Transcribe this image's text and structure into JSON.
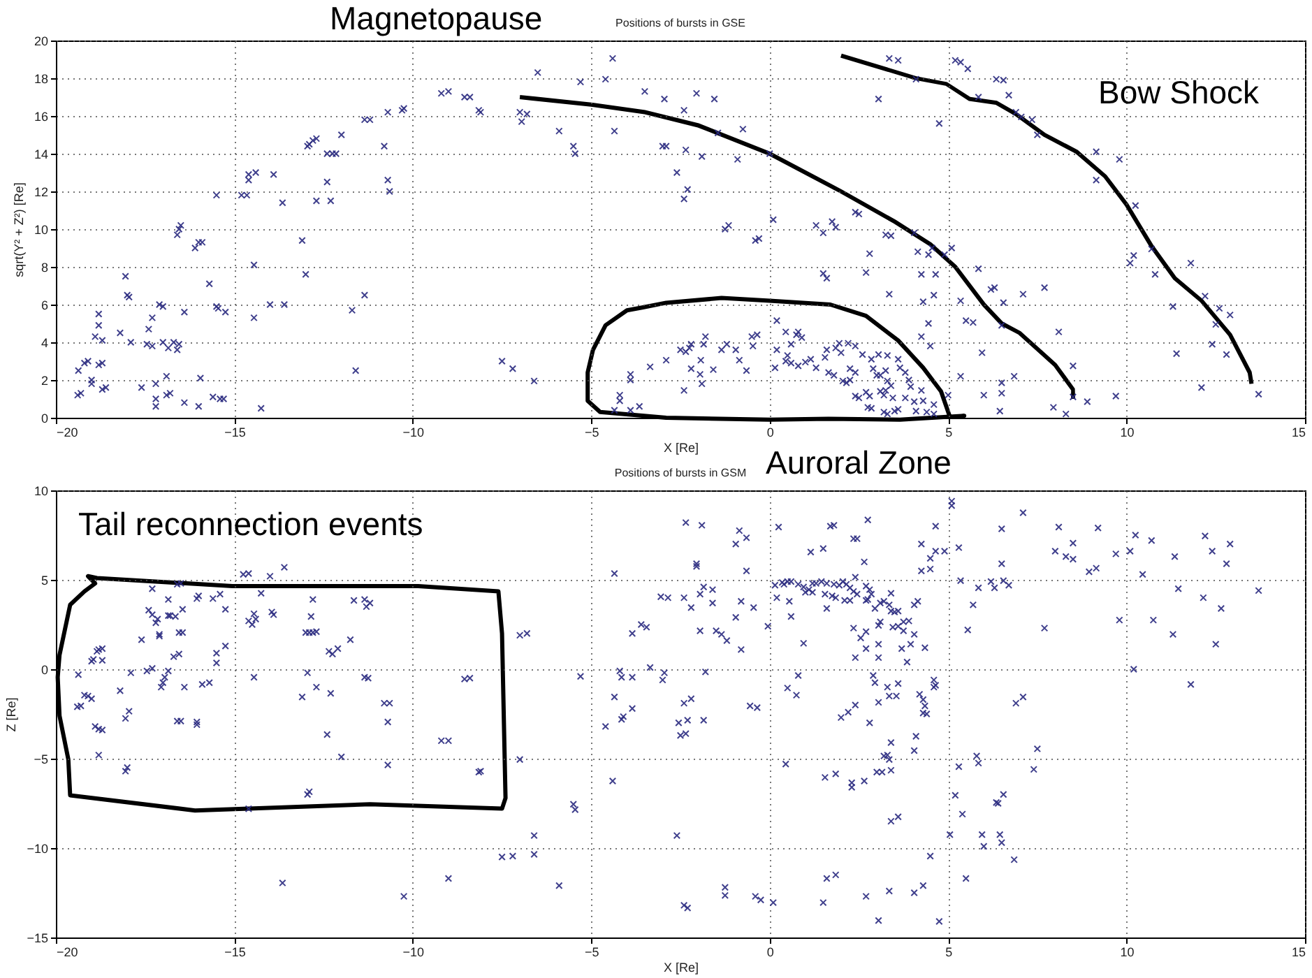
{
  "chart_data": [
    {
      "type": "scatter",
      "title": "Positions of bursts in GSE",
      "xlabel": "X [Re]",
      "ylabel": "sqrt(Y² + Z²) [Re]",
      "annotations": [
        "Magnetopause",
        "Bow Shock",
        "Auroral Zone"
      ],
      "xlim": [
        -20,
        15
      ],
      "xticks": [
        -20,
        -15,
        -10,
        -5,
        0,
        5,
        10,
        15
      ],
      "ylim": [
        0,
        20
      ],
      "yticks": [
        0,
        2,
        4,
        6,
        8,
        10,
        12,
        14,
        16,
        18,
        20
      ],
      "grid": true,
      "marker": "cross",
      "legend": false,
      "series": [
        {
          "color": "#2b2b80",
          "x": [
            -19.37,
            -19.39,
            -19.3,
            -19.2,
            -19.1,
            -19.0,
            -19.0,
            -18.9,
            -18.8,
            -18.8,
            -18.7,
            -18.8,
            -18.7,
            -18.7,
            -18.6,
            -18.2,
            -18.05,
            -18.0,
            -17.95,
            -17.9,
            -17.6,
            -17.4,
            -17.3,
            -17.3,
            -17.45,
            -17.2,
            -17.2,
            -17.2,
            -17.1,
            -17.0,
            -17.0,
            -16.9,
            -16.9,
            -16.85,
            -16.7,
            -16.8,
            -16.6,
            -16.55,
            -16.6,
            -16.55,
            -16.5,
            -16.4,
            -16.4,
            -16.1,
            -16.0,
            -15.9,
            -16.0,
            -15.95,
            -15.7,
            -15.6,
            -15.5,
            -15.5,
            -15.45,
            -15.4,
            -15.3,
            -15.25,
            -14.8,
            -14.65,
            -14.6,
            -14.6,
            -14.45,
            -14.45,
            -14.4,
            -14.25,
            -13.9,
            -14.0,
            -13.65,
            -13.6,
            -13.1,
            -13.0,
            -12.95,
            -12.9,
            -12.8,
            -12.7,
            -12.7,
            -12.4,
            -12.4,
            -12.25,
            -12.15,
            -12.3,
            -12.0,
            -11.7,
            -11.6,
            -11.35,
            -11.35,
            -11.2,
            -10.8,
            -10.7,
            -10.65,
            -10.7,
            -10.3,
            -10.25,
            -9.2,
            -9.0,
            -8.55,
            -8.4,
            -8.15,
            -8.1,
            -7.5,
            -7.2,
            -7.0,
            -6.95,
            -6.8,
            -6.6,
            -6.5,
            -5.9,
            -5.5,
            -5.45,
            -5.3,
            -4.6,
            -4.4,
            -4.35,
            -4.35,
            -4.2,
            -4.2,
            -3.9,
            -3.9,
            -3.9,
            -3.65,
            -3.5,
            -3.35,
            -2.95,
            -2.05,
            -1.55,
            -2.4,
            -3.0,
            -2.9,
            -2.35,
            -1.9,
            -1.45,
            -0.75,
            -0.9,
            -2.6,
            -2.3,
            -2.4,
            -1.25,
            -1.15,
            -0.4,
            -0.3,
            0.0,
            0.1,
            1.3,
            1.5,
            1.75,
            1.85,
            2.4,
            2.5,
            1.5,
            1.6,
            2.8,
            2.7,
            3.25,
            3.4,
            4.05,
            4.15,
            4.55,
            4.45,
            4.25,
            4.65,
            4.9,
            5.1,
            3.35,
            4.3,
            4.6,
            4.45,
            4.25,
            4.5,
            3.05,
            3.35,
            3.6,
            4.1,
            4.75,
            5.2,
            5.35,
            5.55,
            6.35,
            6.55,
            5.85,
            6.7,
            6.9,
            7.05,
            7.35,
            7.5,
            5.85,
            5.35,
            5.5,
            5.7,
            6.2,
            6.3,
            6.55,
            7.1,
            7.7,
            6.5,
            8.1,
            5.95,
            5.35,
            5.0,
            6.0,
            6.5,
            6.5,
            6.45,
            6.85,
            7.95,
            8.3,
            8.5,
            8.5,
            8.9,
            9.7,
            9.15,
            9.8,
            9.15,
            10.25,
            10.2,
            10.1,
            10.7,
            10.8,
            11.8,
            11.3,
            11.4,
            12.2,
            12.1,
            12.4,
            12.5,
            12.6,
            12.9,
            12.8,
            13.7,
            -2.9,
            -2.5,
            -2.35,
            -2.25,
            -2.2,
            -2.2,
            -1.95,
            -1.9,
            -1.93,
            -1.85,
            -1.8,
            -2.4,
            -1.58,
            -1.35,
            -1.2,
            -0.95,
            -0.85,
            -0.65,
            -0.5,
            -0.35,
            -0.47,
            0.2,
            0.2,
            0.15,
            0.45,
            0.5,
            0.6,
            0.45,
            0.6,
            0.75,
            0.8,
            0.9,
            0.8,
            1.0,
            1.15,
            1.3,
            1.55,
            1.65,
            1.8,
            1.6,
            1.85,
            1.95,
            2.0,
            2.2,
            2.4,
            2.05,
            2.15,
            2.25,
            2.25,
            2.4,
            2.4,
            2.5,
            2.7,
            2.8,
            2.75,
            2.85,
            3.1,
            3.2,
            3.25,
            3.3,
            3.4,
            3.45,
            2.6,
            2.85,
            3.05,
            3.3,
            3.6,
            3.65,
            3.8,
            3.9,
            3.95,
            3.2,
            3.3,
            3.5,
            3.6,
            3.8,
            4.05,
            4.1,
            4.25,
            4.3,
            4.4,
            4.6,
            4.6,
            3.1,
            3.25,
            3.0,
            2.9
          ],
          "values": [
            2.5,
            1.2,
            1.3,
            2.9,
            3.0,
            2.0,
            1.8,
            4.3,
            5.5,
            4.9,
            4.1,
            2.8,
            2.9,
            1.5,
            1.6,
            4.5,
            7.5,
            6.5,
            6.4,
            4.0,
            1.6,
            4.7,
            3.8,
            5.3,
            3.9,
            1.8,
            1.0,
            0.6,
            6.0,
            5.9,
            4.0,
            2.2,
            1.2,
            3.7,
            4.0,
            1.3,
            3.6,
            3.9,
            9.7,
            10.0,
            10.2,
            5.6,
            0.8,
            9.0,
            9.3,
            9.3,
            0.6,
            2.1,
            7.1,
            1.1,
            11.8,
            5.9,
            5.8,
            1.0,
            1.0,
            5.6,
            11.8,
            11.8,
            12.6,
            12.9,
            5.3,
            8.1,
            13.0,
            0.5,
            12.9,
            6.0,
            11.4,
            6.0,
            9.4,
            7.6,
            14.4,
            14.5,
            14.7,
            14.8,
            11.5,
            12.5,
            14.0,
            14.0,
            14.0,
            11.5,
            15.0,
            5.7,
            2.5,
            6.5,
            15.8,
            15.8,
            14.4,
            12.6,
            12.0,
            16.2,
            16.3,
            16.4,
            17.2,
            17.3,
            17.0,
            17.0,
            16.3,
            16.2,
            3.0,
            2.6,
            16.2,
            15.7,
            16.1,
            1.95,
            18.3,
            15.2,
            14.4,
            14.0,
            17.8,
            17.95,
            19.05,
            15.2,
            0.4,
            1.2,
            0.9,
            0.4,
            2.3,
            2.0,
            0.6,
            17.3,
            2.7,
            16.9,
            17.2,
            16.9,
            16.3,
            14.4,
            14.4,
            14.2,
            13.85,
            15.1,
            15.3,
            13.7,
            13.0,
            12.1,
            11.6,
            10.0,
            10.2,
            9.4,
            9.5,
            14.0,
            10.5,
            10.2,
            9.8,
            10.4,
            10.1,
            10.9,
            10.8,
            7.65,
            7.4,
            8.7,
            7.7,
            9.7,
            9.65,
            9.8,
            8.8,
            9.0,
            8.65,
            7.6,
            7.6,
            8.65,
            9.0,
            6.55,
            6.15,
            6.5,
            5.0,
            4.3,
            3.8,
            16.9,
            19.05,
            18.95,
            17.95,
            15.6,
            18.95,
            18.85,
            18.5,
            17.95,
            17.9,
            17.0,
            17.1,
            16.2,
            15.95,
            15.8,
            15.0,
            7.9,
            6.2,
            5.15,
            5.05,
            6.8,
            6.9,
            6.1,
            6.55,
            6.9,
            4.9,
            4.55,
            3.45,
            2.2,
            1.2,
            1.2,
            1.85,
            1.3,
            0.35,
            2.2,
            0.55,
            0.2,
            2.75,
            1.1,
            0.85,
            1.15,
            14.1,
            13.7,
            12.6,
            11.25,
            8.6,
            8.2,
            8.95,
            7.6,
            8.2,
            5.9,
            3.4,
            6.45,
            1.6,
            3.9,
            4.95,
            5.8,
            5.45,
            3.35,
            1.25,
            3.05,
            3.6,
            3.5,
            3.7,
            3.9,
            2.6,
            2.3,
            1.8,
            3.05,
            3.9,
            4.3,
            1.45,
            2.55,
            3.6,
            3.9,
            3.6,
            3.05,
            2.5,
            4.3,
            4.4,
            3.8,
            3.6,
            5.15,
            2.65,
            3.0,
            3.3,
            2.9,
            4.55,
            3.9,
            4.4,
            4.55,
            4.25,
            2.75,
            2.95,
            3.1,
            2.65,
            3.2,
            2.4,
            2.25,
            3.6,
            3.7,
            3.95,
            3.45,
            3.95,
            3.8,
            1.95,
            1.85,
            2.0,
            2.6,
            2.4,
            1.15,
            1.05,
            1.35,
            1.15,
            0.55,
            0.5,
            1.4,
            1.2,
            1.45,
            1.95,
            1.7,
            1.05,
            3.35,
            3.1,
            3.35,
            3.3,
            3.1,
            2.65,
            2.4,
            2.0,
            1.65,
            0.3,
            0.2,
            0.35,
            0.45,
            1.05,
            0.85,
            0.35,
            1.45,
            0.9,
            0.3,
            0.7,
            0.2,
            2.25,
            2.5,
            2.25,
            2.6
          ]
        }
      ]
    },
    {
      "type": "scatter",
      "title": "Positions of bursts in GSM",
      "xlabel": "X [Re]",
      "ylabel": "Z [Re]",
      "annotations": [
        "Tail reconnection events"
      ],
      "xlim": [
        -20,
        15
      ],
      "xticks": [
        -20,
        -15,
        -10,
        -5,
        0,
        5,
        10,
        15
      ],
      "ylim": [
        -15,
        10
      ],
      "yticks": [
        -15,
        -10,
        -5,
        0,
        5,
        10
      ],
      "grid": true,
      "marker": "cross",
      "legend": false,
      "series": [
        {
          "color": "#2b2b80",
          "x": [
            -19.37,
            -19.4,
            -19.3,
            -19.2,
            -19.1,
            -19.0,
            -19.0,
            -18.95,
            -18.85,
            -18.8,
            -18.7,
            -18.7,
            -18.9,
            -18.8,
            -18.7,
            -18.8,
            -18.05,
            -18.0,
            -18.05,
            -17.95,
            -18.2,
            -17.9,
            -17.6,
            -17.4,
            -17.3,
            -17.3,
            -17.2,
            -17.15,
            -17.1,
            -17.1,
            -17.45,
            -17.3,
            -17.05,
            -17.0,
            -16.95,
            -16.85,
            -16.85,
            -16.8,
            -16.85,
            -16.65,
            -16.45,
            -16.55,
            -16.45,
            -16.7,
            -16.55,
            -16.6,
            -16.5,
            -16.6,
            -16.5,
            -16.4,
            -16.05,
            -16.0,
            -16.05,
            -16.05,
            -15.9,
            -15.7,
            -15.6,
            -15.4,
            -15.25,
            -15.5,
            -15.5,
            -15.25,
            -14.75,
            -14.6,
            -14.6,
            -14.5,
            -14.45,
            -14.4,
            -14.45,
            -14.6,
            -14.25,
            -14.0,
            -13.6,
            -13.9,
            -13.95,
            -13.65,
            -13.1,
            -12.95,
            -12.95,
            -12.9,
            -13.0,
            -12.9,
            -12.8,
            -12.7,
            -12.85,
            -12.8,
            -12.7,
            -12.35,
            -12.25,
            -12.1,
            -12.3,
            -12.4,
            -12.0,
            -11.75,
            -11.65,
            -11.35,
            -11.3,
            -11.2,
            -11.35,
            -11.25,
            -10.8,
            -10.65,
            -10.7,
            -10.7,
            -10.25,
            -9.2,
            -9.0,
            -9.0,
            -8.55,
            -8.4,
            -8.15,
            -8.1,
            -7.5,
            -7.2,
            -7.0,
            -6.8,
            -7.0,
            -6.6,
            -6.6,
            -5.9,
            -5.5,
            -5.45,
            -5.3,
            -4.35,
            -4.6,
            -4.35,
            -4.4,
            -4.2,
            -4.15,
            -4.15,
            -4.1,
            -3.85,
            -3.6,
            -3.45,
            -3.85,
            -3.85,
            -3.35,
            -3.05,
            -2.85,
            -2.95,
            -3.0,
            -2.35,
            -1.9,
            -2.05,
            -2.05,
            -2.4,
            -2.2,
            -1.95,
            -1.85,
            -1.6,
            -1.6,
            -1.95,
            -1.5,
            -1.35,
            -1.2,
            -0.8,
            -0.95,
            -0.8,
            -0.45,
            -0.95,
            -0.85,
            -0.65,
            -0.65,
            -1.8,
            -2.4,
            -2.2,
            -2.55,
            -2.3,
            -1.85,
            -2.5,
            -2.35,
            -0.55,
            -0.35,
            -2.6,
            -2.4,
            -2.3,
            -1.25,
            -1.25,
            -0.4,
            -0.25,
            0.1,
            -0.05,
            0.25,
            0.15,
            0.2,
            0.55,
            0.6,
            0.35,
            0.4,
            0.5,
            0.6,
            0.8,
            0.95,
            1.1,
            1.2,
            1.3,
            1.45,
            1.6,
            1.8,
            1.95,
            2.05,
            2.15,
            2.25,
            2.35,
            2.45,
            1.0,
            1.2,
            1.55,
            1.75,
            1.85,
            2.1,
            2.25,
            2.7,
            2.8,
            2.85,
            2.75,
            2.7,
            1.6,
            0.95,
            0.8,
            0.5,
            0.75,
            1.15,
            1.5,
            1.7,
            1.8,
            2.35,
            2.45,
            2.75,
            2.65,
            2.4,
            2.95,
            3.1,
            3.2,
            3.35,
            3.4,
            3.5,
            3.6,
            3.4,
            3.05,
            3.1,
            3.45,
            3.6,
            3.75,
            3.9,
            4.05,
            3.75,
            2.35,
            2.55,
            2.7,
            2.4,
            2.7,
            3.05,
            3.05,
            3.7,
            3.95,
            4.35,
            3.85,
            4.05,
            4.15,
            4.25,
            4.5,
            4.65,
            4.5,
            4.25,
            4.65,
            4.9,
            2.9,
            2.95,
            3.3,
            3.35,
            3.05,
            3.55,
            3.6,
            2.4,
            2.2,
            2.0,
            2.8,
            4.2,
            4.3,
            4.35,
            4.3,
            4.4,
            4.6,
            4.6,
            4.65,
            4.1,
            4.05,
            3.4,
            3.2,
            3.3,
            3.35,
            3.0,
            3.15,
            3.4,
            0.45,
            1.55,
            1.85,
            2.3,
            2.3,
            2.65,
            3.4,
            3.6,
            4.5,
            1.6,
            1.85,
            1.5,
            2.7,
            3.35,
            4.05,
            4.3,
            3.05,
            4.75,
            5.1,
            5.1,
            5.3,
            5.35,
            5.85,
            6.2,
            6.3,
            6.55,
            6.7,
            6.5,
            5.7,
            5.55,
            6.5,
            7.1,
            8.1,
            8.0,
            8.3,
            8.5,
            8.5,
            8.95,
            9.15,
            9.2,
            9.7,
            7.7,
            9.8,
            10.25,
            10.1,
            10.7,
            10.45,
            11.35,
            11.45,
            12.2,
            12.4,
            12.9,
            12.8,
            12.15,
            12.65,
            13.7,
            10.75,
            11.3,
            12.5,
            10.2,
            11.8,
            6.9,
            7.1,
            5.8,
            5.85,
            5.3,
            7.5,
            7.4,
            5.2,
            5.4,
            5.05,
            6.35,
            6.4,
            6.55,
            5.95,
            6.0,
            6.45,
            6.5,
            6.85,
            5.5
          ],
          "values": [
            -0.3,
            -2.1,
            -2.05,
            -1.45,
            -1.5,
            -1.65,
            0.45,
            0.55,
            1.0,
            1.1,
            1.15,
            0.5,
            -3.2,
            -3.35,
            -3.4,
            -4.8,
            -5.7,
            -5.5,
            -2.75,
            -2.35,
            -1.2,
            -0.2,
            1.65,
            3.3,
            3.05,
            4.5,
            2.6,
            2.8,
            1.95,
            1.85,
            -0.1,
            0.05,
            -1.0,
            -0.75,
            -0.45,
            3.9,
            3.0,
            3.0,
            -0.1,
            2.95,
            3.35,
            2.05,
            2.05,
            0.7,
            0.85,
            4.75,
            4.8,
            -2.9,
            -2.9,
            -1.0,
            3.95,
            4.1,
            -2.95,
            -3.1,
            -0.85,
            -0.75,
            3.95,
            4.2,
            3.35,
            0.9,
            0.35,
            1.3,
            5.3,
            5.35,
            2.7,
            2.5,
            3.1,
            2.8,
            -0.45,
            -7.8,
            4.25,
            5.2,
            5.7,
            3.05,
            3.2,
            -11.95,
            -1.55,
            -0.2,
            -7.0,
            -6.85,
            2.05,
            2.05,
            2.05,
            2.1,
            2.95,
            3.9,
            -1.0,
            1.0,
            0.85,
            1.15,
            -1.35,
            -3.65,
            -4.9,
            1.65,
            3.85,
            3.9,
            3.5,
            3.7,
            -0.45,
            -0.5,
            -1.9,
            -1.9,
            -2.95,
            -5.35,
            -12.7,
            -4.0,
            -4.0,
            -11.7,
            -0.55,
            -0.5,
            -5.75,
            -5.7,
            -10.5,
            -10.45,
            1.9,
            2.0,
            -5.05,
            -9.3,
            -10.35,
            -12.1,
            -7.55,
            -7.85,
            -0.4,
            5.35,
            -3.2,
            -1.55,
            -6.25,
            -0.1,
            -0.45,
            -2.8,
            -2.65,
            2.0,
            2.5,
            2.35,
            -0.45,
            -2.2,
            0.1,
            4.05,
            4.0,
            -0.2,
            -0.6,
            8.2,
            8.05,
            5.9,
            5.75,
            4.0,
            3.45,
            4.2,
            4.6,
            4.45,
            3.7,
            2.15,
            2.15,
            1.95,
            1.6,
            1.1,
            2.9,
            3.8,
            3.45,
            7.0,
            7.75,
            7.35,
            5.5,
            -0.15,
            -1.9,
            -1.65,
            -3.0,
            -2.85,
            -2.85,
            -3.7,
            -3.6,
            -2.05,
            -2.15,
            -9.3,
            -13.2,
            -13.35,
            -12.2,
            -12.65,
            -12.7,
            -12.9,
            -13.05,
            2.4,
            7.95,
            4.7,
            4.0,
            3.8,
            2.95,
            4.85,
            4.75,
            4.9,
            4.9,
            4.75,
            4.6,
            4.45,
            4.8,
            4.8,
            4.9,
            4.8,
            4.75,
            4.7,
            4.9,
            4.75,
            4.55,
            4.35,
            4.2,
            4.3,
            4.3,
            4.2,
            4.1,
            4.0,
            3.85,
            3.85,
            4.65,
            4.45,
            4.2,
            3.9,
            3.85,
            3.4,
            1.45,
            -0.35,
            -1.05,
            -1.45,
            6.55,
            6.75,
            8.0,
            8.05,
            7.3,
            7.3,
            8.35,
            6.0,
            5.15,
            3.4,
            3.7,
            3.8,
            3.6,
            3.25,
            3.2,
            3.25,
            4.25,
            2.45,
            2.65,
            2.35,
            2.4,
            2.65,
            2.7,
            1.95,
            2.15,
            2.3,
            1.75,
            2.1,
            0.65,
            1.15,
            1.4,
            0.65,
            1.15,
            1.4,
            1.2,
            0.4,
            3.6,
            3.8,
            7.0,
            6.2,
            6.6,
            5.6,
            5.5,
            8.0,
            6.6,
            -0.35,
            -0.75,
            -1.0,
            -1.5,
            -1.85,
            -1.5,
            -0.8,
            -2.0,
            -2.4,
            -2.7,
            -3.0,
            -1.4,
            -1.7,
            -2.05,
            -2.45,
            -2.5,
            -0.6,
            -1.0,
            -0.9,
            -3.75,
            -4.55,
            -4.1,
            -4.85,
            -4.8,
            -5.05,
            -5.75,
            -5.75,
            -5.65,
            -5.3,
            -6.05,
            -5.85,
            -6.35,
            -6.6,
            -6.25,
            -8.5,
            -8.25,
            -10.45,
            -11.7,
            -11.5,
            -13.05,
            -12.7,
            -12.4,
            -12.5,
            -12.1,
            -14.05,
            -14.1,
            9.4,
            9.15,
            6.8,
            4.95,
            4.55,
            4.9,
            4.55,
            4.95,
            4.7,
            5.9,
            3.6,
            2.2,
            7.85,
            8.75,
            7.95,
            6.6,
            6.3,
            7.05,
            6.15,
            5.45,
            5.65,
            7.9,
            6.45,
            2.3,
            2.75,
            7.5,
            6.6,
            7.2,
            5.3,
            6.3,
            4.5,
            7.45,
            6.6,
            7.0,
            5.9,
            4.0,
            3.4,
            4.4,
            2.75,
            1.95,
            1.4,
            0.0,
            -0.85,
            -1.9,
            -1.55,
            -4.85,
            -5.25,
            -5.45,
            -4.45,
            -5.6,
            -7.05,
            -8.1,
            -9.25,
            -7.45,
            -7.5,
            -7.0,
            -9.25,
            -9.9,
            -9.25,
            -9.7,
            -10.65,
            -11.7
          ]
        }
      ]
    }
  ]
}
